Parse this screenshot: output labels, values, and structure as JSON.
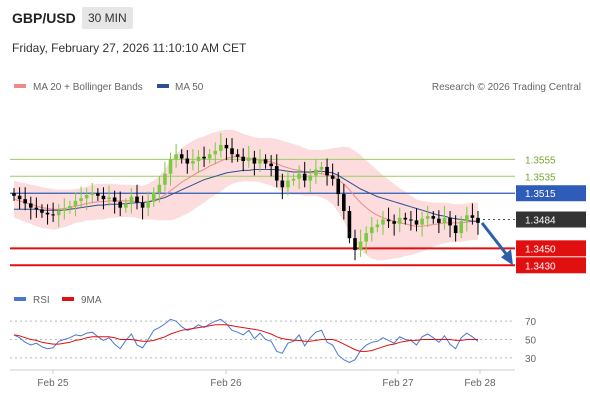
{
  "header": {
    "symbol": "GBP/USD",
    "timeframe": "30 MIN",
    "timestamp": "Friday, February 27, 2026 11:10:10 AM CET"
  },
  "legend": {
    "ma20": "MA 20 + Bollinger Bands",
    "ma50": "MA 50",
    "rsi": "RSI",
    "rsi_ma": "9MA"
  },
  "credit": "Research © 2026 Trading Central",
  "colors": {
    "ma20": "#f08a8a",
    "ma50": "#2e4f8f",
    "band": "#fbd6d6",
    "resistance": "#9ccc65",
    "support": "#e01010",
    "pivot": "#2e5cb8",
    "arrow": "#2e5fa8",
    "bull": "#7dc943",
    "bear": "#000000"
  },
  "chart_data": [
    {
      "type": "line",
      "panel": "price",
      "ylim": [
        1.3415,
        1.3625
      ],
      "x_ticks": [
        "Feb 25",
        "Feb 26",
        "Feb 27",
        "Feb 28"
      ],
      "levels": [
        {
          "label": "1.3555",
          "value": 1.3555,
          "kind": "resistance"
        },
        {
          "label": "1.3535",
          "value": 1.3535,
          "kind": "resistance"
        },
        {
          "label": "1.3515",
          "value": 1.3515,
          "kind": "pivot"
        },
        {
          "label": "1.3484",
          "value": 1.3484,
          "kind": "current"
        },
        {
          "label": "1.3450",
          "value": 1.345,
          "kind": "support"
        },
        {
          "label": "1.3430",
          "value": 1.343,
          "kind": "support"
        }
      ],
      "close_series": [
        1.3512,
        1.3508,
        1.3503,
        1.3498,
        1.3496,
        1.3492,
        1.349,
        1.3489,
        1.3494,
        1.3497,
        1.35,
        1.3506,
        1.3509,
        1.3513,
        1.3515,
        1.3512,
        1.3508,
        1.351,
        1.3505,
        1.3498,
        1.3503,
        1.3511,
        1.3504,
        1.3498,
        1.3505,
        1.3516,
        1.3525,
        1.3538,
        1.3555,
        1.3561,
        1.3556,
        1.355,
        1.3553,
        1.3558,
        1.3556,
        1.3561,
        1.3565,
        1.3572,
        1.3568,
        1.3561,
        1.3558,
        1.3553,
        1.3557,
        1.355,
        1.3555,
        1.355,
        1.3547,
        1.353,
        1.3522,
        1.353,
        1.3532,
        1.3538,
        1.353,
        1.3536,
        1.3543,
        1.3546,
        1.3536,
        1.3532,
        1.3514,
        1.3494,
        1.3462,
        1.3448,
        1.3458,
        1.3468,
        1.3475,
        1.3478,
        1.3484,
        1.3482,
        1.3479,
        1.3486,
        1.3484,
        1.3483,
        1.3478,
        1.3485,
        1.3488,
        1.3485,
        1.348,
        1.3486,
        1.3477,
        1.3468,
        1.3482,
        1.3489,
        1.3486,
        1.348
      ],
      "ma20_series": [
        1.3508,
        1.3506,
        1.3504,
        1.3502,
        1.35,
        1.3498,
        1.3497,
        1.3496,
        1.3496,
        1.3497,
        1.3498,
        1.35,
        1.3501,
        1.3503,
        1.3504,
        1.3505,
        1.3505,
        1.3506,
        1.3506,
        1.3506,
        1.3506,
        1.3506,
        1.3505,
        1.3504,
        1.3505,
        1.3507,
        1.3509,
        1.3513,
        1.3518,
        1.3523,
        1.3528,
        1.3532,
        1.3536,
        1.354,
        1.3543,
        1.3547,
        1.355,
        1.3553,
        1.3556,
        1.3558,
        1.3558,
        1.3557,
        1.3556,
        1.3555,
        1.3554,
        1.3553,
        1.3552,
        1.355,
        1.3547,
        1.3545,
        1.3543,
        1.3542,
        1.354,
        1.3539,
        1.3539,
        1.3538,
        1.3537,
        1.3535,
        1.3531,
        1.3526,
        1.3519,
        1.3511,
        1.3504,
        1.3498,
        1.3493,
        1.3489,
        1.3486,
        1.3484,
        1.3482,
        1.348,
        1.3479,
        1.3477,
        1.3476,
        1.3476,
        1.3477,
        1.3478,
        1.3479,
        1.348,
        1.348,
        1.348,
        1.348,
        1.3481,
        1.3482,
        1.3482
      ],
      "ma50_series": [
        1.3496,
        1.3496,
        1.3496,
        1.3496,
        1.3496,
        1.3495,
        1.3495,
        1.3495,
        1.3495,
        1.3495,
        1.3496,
        1.3497,
        1.3498,
        1.3499,
        1.35,
        1.3501,
        1.3501,
        1.3502,
        1.3502,
        1.3502,
        1.3503,
        1.3503,
        1.3504,
        1.3504,
        1.3505,
        1.3506,
        1.3508,
        1.351,
        1.3513,
        1.3516,
        1.3519,
        1.3522,
        1.3525,
        1.3528,
        1.3531,
        1.3533,
        1.3535,
        1.3537,
        1.3539,
        1.354,
        1.3541,
        1.3542,
        1.3542,
        1.3543,
        1.3543,
        1.3543,
        1.3543,
        1.3543,
        1.3542,
        1.3541,
        1.354,
        1.354,
        1.354,
        1.354,
        1.3541,
        1.3541,
        1.354,
        1.3539,
        1.3536,
        1.3532,
        1.3528,
        1.3524,
        1.352,
        1.3517,
        1.3514,
        1.3511,
        1.3509,
        1.3507,
        1.3505,
        1.3503,
        1.3501,
        1.3499,
        1.3497,
        1.3495,
        1.3493,
        1.3491,
        1.3489,
        1.3488,
        1.3486,
        1.3485,
        1.3484,
        1.3483,
        1.3482,
        1.3482
      ],
      "band_width": [
        0.0022,
        0.0022,
        0.0023,
        0.0023,
        0.0024,
        0.0024,
        0.0024,
        0.0024,
        0.0023,
        0.0022,
        0.0021,
        0.002,
        0.002,
        0.002,
        0.0021,
        0.0021,
        0.0021,
        0.002,
        0.002,
        0.0019,
        0.0019,
        0.0019,
        0.0019,
        0.002,
        0.0021,
        0.0023,
        0.0026,
        0.003,
        0.0035,
        0.0038,
        0.004,
        0.0041,
        0.0041,
        0.004,
        0.0039,
        0.0038,
        0.0037,
        0.0036,
        0.0034,
        0.0032,
        0.003,
        0.0028,
        0.0027,
        0.0026,
        0.0026,
        0.0027,
        0.0028,
        0.0029,
        0.003,
        0.003,
        0.003,
        0.0029,
        0.0028,
        0.0027,
        0.0027,
        0.0028,
        0.003,
        0.0033,
        0.0038,
        0.0044,
        0.005,
        0.0054,
        0.0056,
        0.0056,
        0.0055,
        0.0053,
        0.005,
        0.0047,
        0.0044,
        0.0041,
        0.0038,
        0.0035,
        0.0032,
        0.003,
        0.0028,
        0.0026,
        0.0025,
        0.0024,
        0.0023,
        0.0022,
        0.0022,
        0.0022,
        0.0022,
        0.0022
      ]
    },
    {
      "type": "line",
      "panel": "rsi",
      "ylim": [
        20,
        80
      ],
      "y_ticks": [
        "70",
        "50",
        "30"
      ],
      "series": [
        {
          "key": "rsi",
          "values": [
            55,
            52,
            47,
            44,
            46,
            42,
            40,
            41,
            48,
            50,
            52,
            55,
            54,
            57,
            58,
            53,
            49,
            52,
            45,
            40,
            49,
            56,
            44,
            41,
            50,
            60,
            63,
            67,
            72,
            70,
            64,
            60,
            62,
            66,
            63,
            67,
            70,
            72,
            67,
            60,
            58,
            55,
            60,
            51,
            57,
            50,
            48,
            37,
            35,
            46,
            48,
            55,
            43,
            52,
            58,
            60,
            47,
            44,
            33,
            28,
            25,
            28,
            38,
            44,
            47,
            48,
            52,
            49,
            46,
            53,
            50,
            49,
            44,
            53,
            56,
            52,
            47,
            54,
            45,
            40,
            52,
            57,
            53,
            48
          ]
        },
        {
          "key": "rsi_ma",
          "values": [
            55,
            54,
            52,
            50,
            49,
            47,
            46,
            45,
            45,
            46,
            47,
            49,
            50,
            52,
            53,
            53,
            53,
            53,
            52,
            50,
            50,
            50,
            49,
            48,
            48,
            49,
            51,
            53,
            56,
            58,
            60,
            61,
            62,
            63,
            64,
            65,
            66,
            66,
            66,
            65,
            64,
            63,
            62,
            61,
            60,
            58,
            56,
            53,
            51,
            50,
            49,
            49,
            48,
            48,
            49,
            50,
            50,
            50,
            48,
            45,
            42,
            39,
            37,
            37,
            38,
            40,
            42,
            44,
            45,
            47,
            48,
            49,
            49,
            50,
            50,
            50,
            50,
            50,
            50,
            49,
            49,
            50,
            50,
            50
          ]
        }
      ]
    }
  ]
}
